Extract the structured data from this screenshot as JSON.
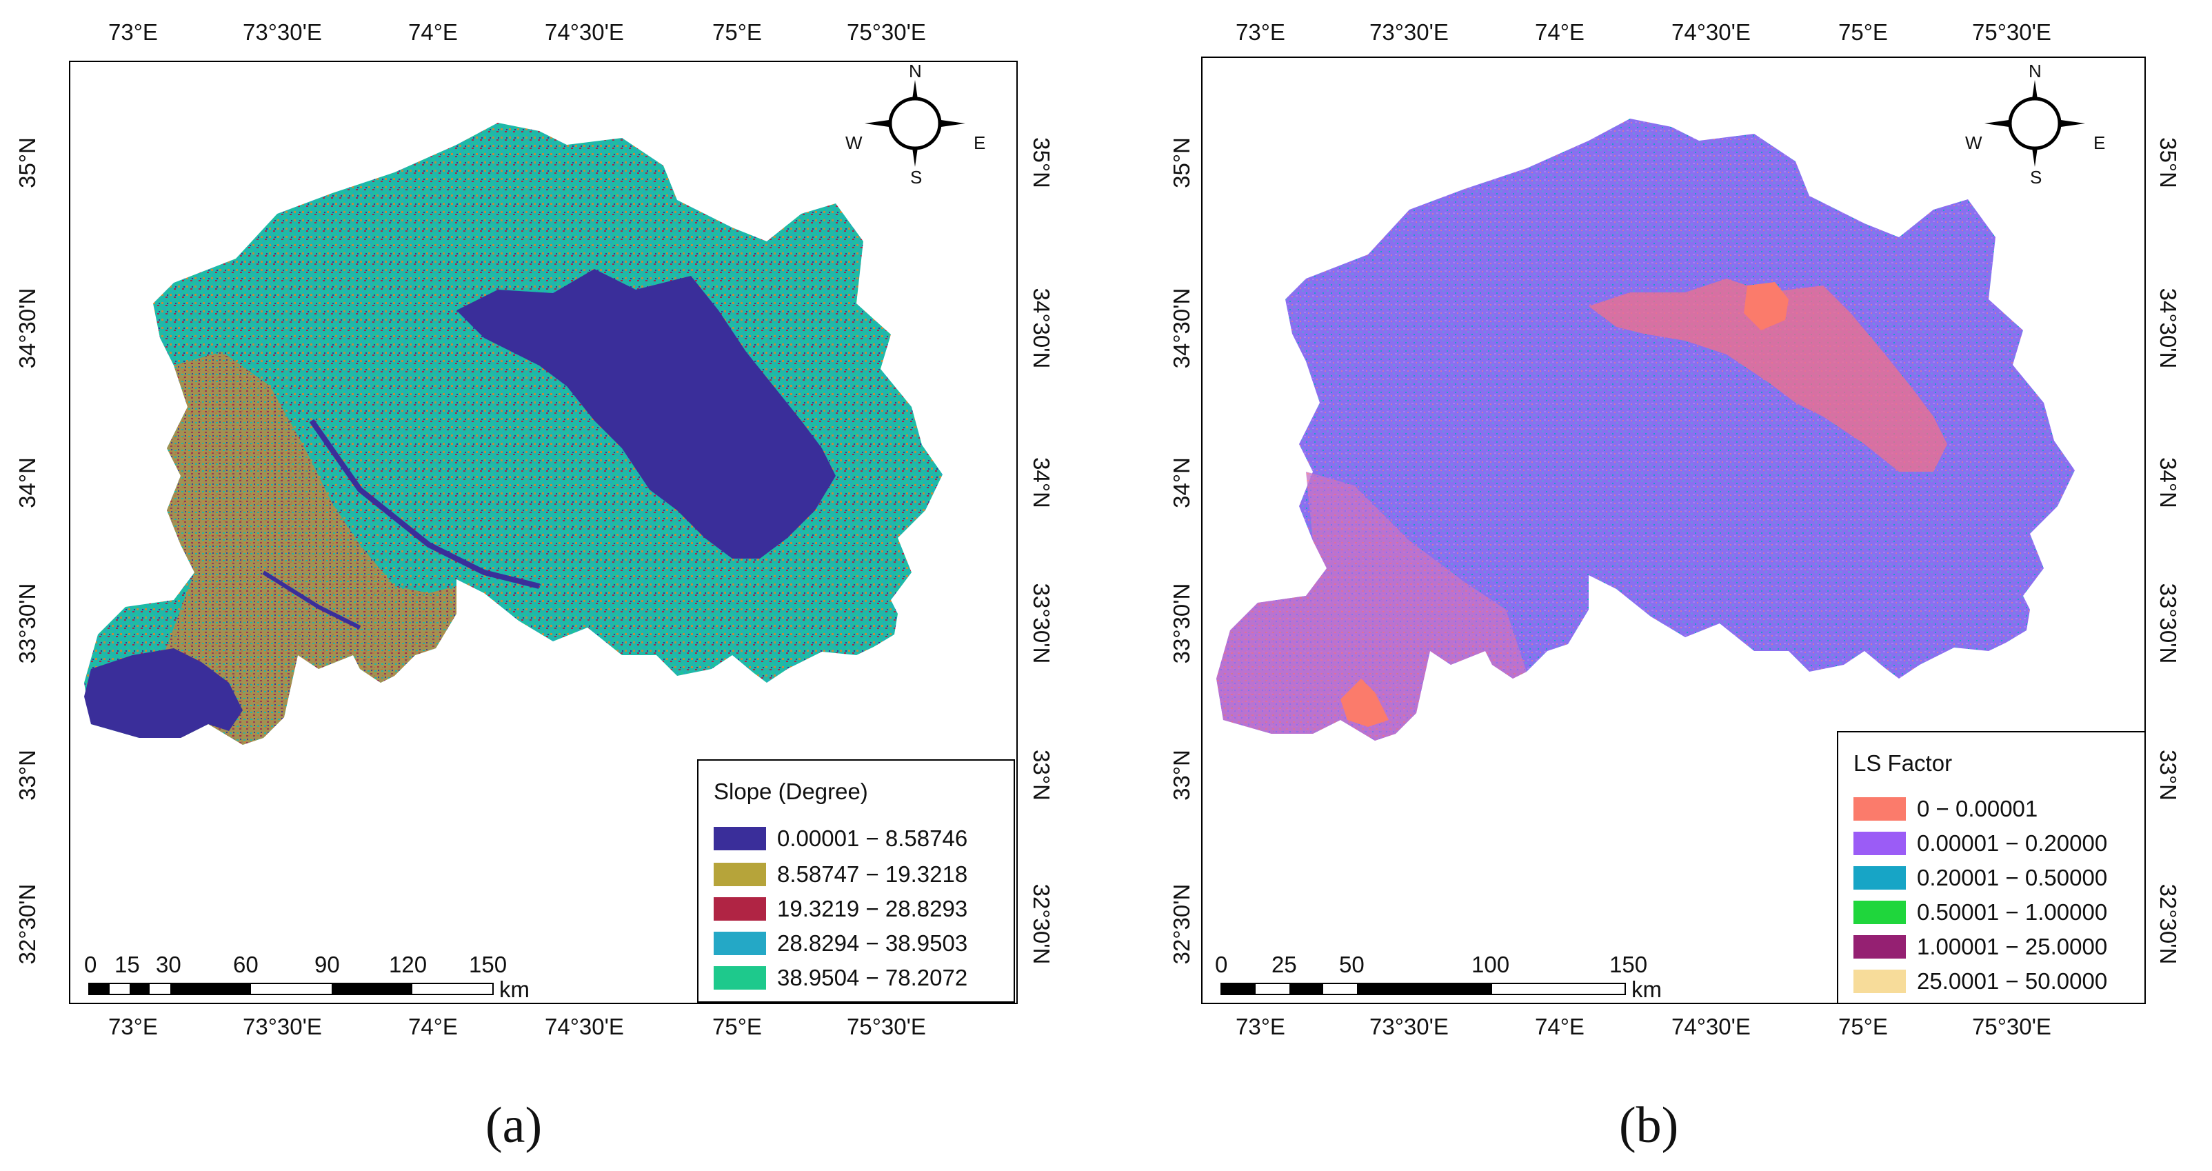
{
  "panels": [
    {
      "id": "a",
      "panel_label": "(a)",
      "x_ticks_top": [
        "73°E",
        "73°30'E",
        "74°E",
        "74°30'E",
        "75°E",
        "75°30'E"
      ],
      "x_ticks_bottom": [
        "73°E",
        "73°30'E",
        "74°E",
        "74°30'E",
        "75°E",
        "75°30'E"
      ],
      "y_ticks_left": [
        "35°N",
        "34°30'N",
        "34°N",
        "33°30'N",
        "33°N",
        "32°30'N"
      ],
      "y_ticks_right": [
        "35°N",
        "34°30'N",
        "34°N",
        "33°30'N",
        "33°N",
        "32°30'N"
      ],
      "compass": {
        "n": "N",
        "s": "S",
        "e": "E",
        "w": "W"
      },
      "legend": {
        "title": "Slope (Degree)",
        "items": [
          {
            "label": "0.00001 − 8.58746",
            "color": "#3a2e9a"
          },
          {
            "label": "8.58747 − 19.3218",
            "color": "#b6a43a"
          },
          {
            "label": "19.3219 − 28.8293",
            "color": "#b02444"
          },
          {
            "label": "28.8294 − 38.9503",
            "color": "#24a8c6"
          },
          {
            "label": "38.9504 − 78.2072",
            "color": "#1ec98c"
          }
        ]
      },
      "scalebar": {
        "labels": [
          "0",
          "15",
          "30",
          "60",
          "90",
          "120",
          "150"
        ],
        "unit": "km"
      },
      "map_colors": {
        "base": "#1fb9a8",
        "accent1": "#c58a3e",
        "accent2": "#3a2e9a"
      }
    },
    {
      "id": "b",
      "panel_label": "(b)",
      "x_ticks_top": [
        "73°E",
        "73°30'E",
        "74°E",
        "74°30'E",
        "75°E",
        "75°30'E"
      ],
      "x_ticks_bottom": [
        "73°E",
        "73°30'E",
        "74°E",
        "74°30'E",
        "75°E",
        "75°30'E"
      ],
      "y_ticks_left": [
        "35°N",
        "34°30'N",
        "34°N",
        "33°30'N",
        "33°N",
        "32°30'N"
      ],
      "y_ticks_right": [
        "35°N",
        "34°30'N",
        "34°N",
        "33°30'N",
        "33°N",
        "32°30'N"
      ],
      "compass": {
        "n": "N",
        "s": "S",
        "e": "E",
        "w": "W"
      },
      "legend": {
        "title": "LS Factor",
        "items": [
          {
            "label": "0 − 0.00001",
            "color": "#fb7b6b"
          },
          {
            "label": "0.00001 − 0.20000",
            "color": "#9b5cf6"
          },
          {
            "label": "0.20001 − 0.50000",
            "color": "#17a5c6"
          },
          {
            "label": "0.50001 − 1.00000",
            "color": "#1fd63c"
          },
          {
            "label": "1.00001 − 25.0000",
            "color": "#952072"
          },
          {
            "label": "25.0001 − 50.0000",
            "color": "#f7dc9a"
          }
        ]
      },
      "scalebar": {
        "labels": [
          "0",
          "25",
          "50",
          "100",
          "150"
        ],
        "unit": "km"
      },
      "map_colors": {
        "base": "#8a6ff0",
        "accent1": "#f0708a",
        "accent2": "#17a5c6"
      }
    }
  ]
}
